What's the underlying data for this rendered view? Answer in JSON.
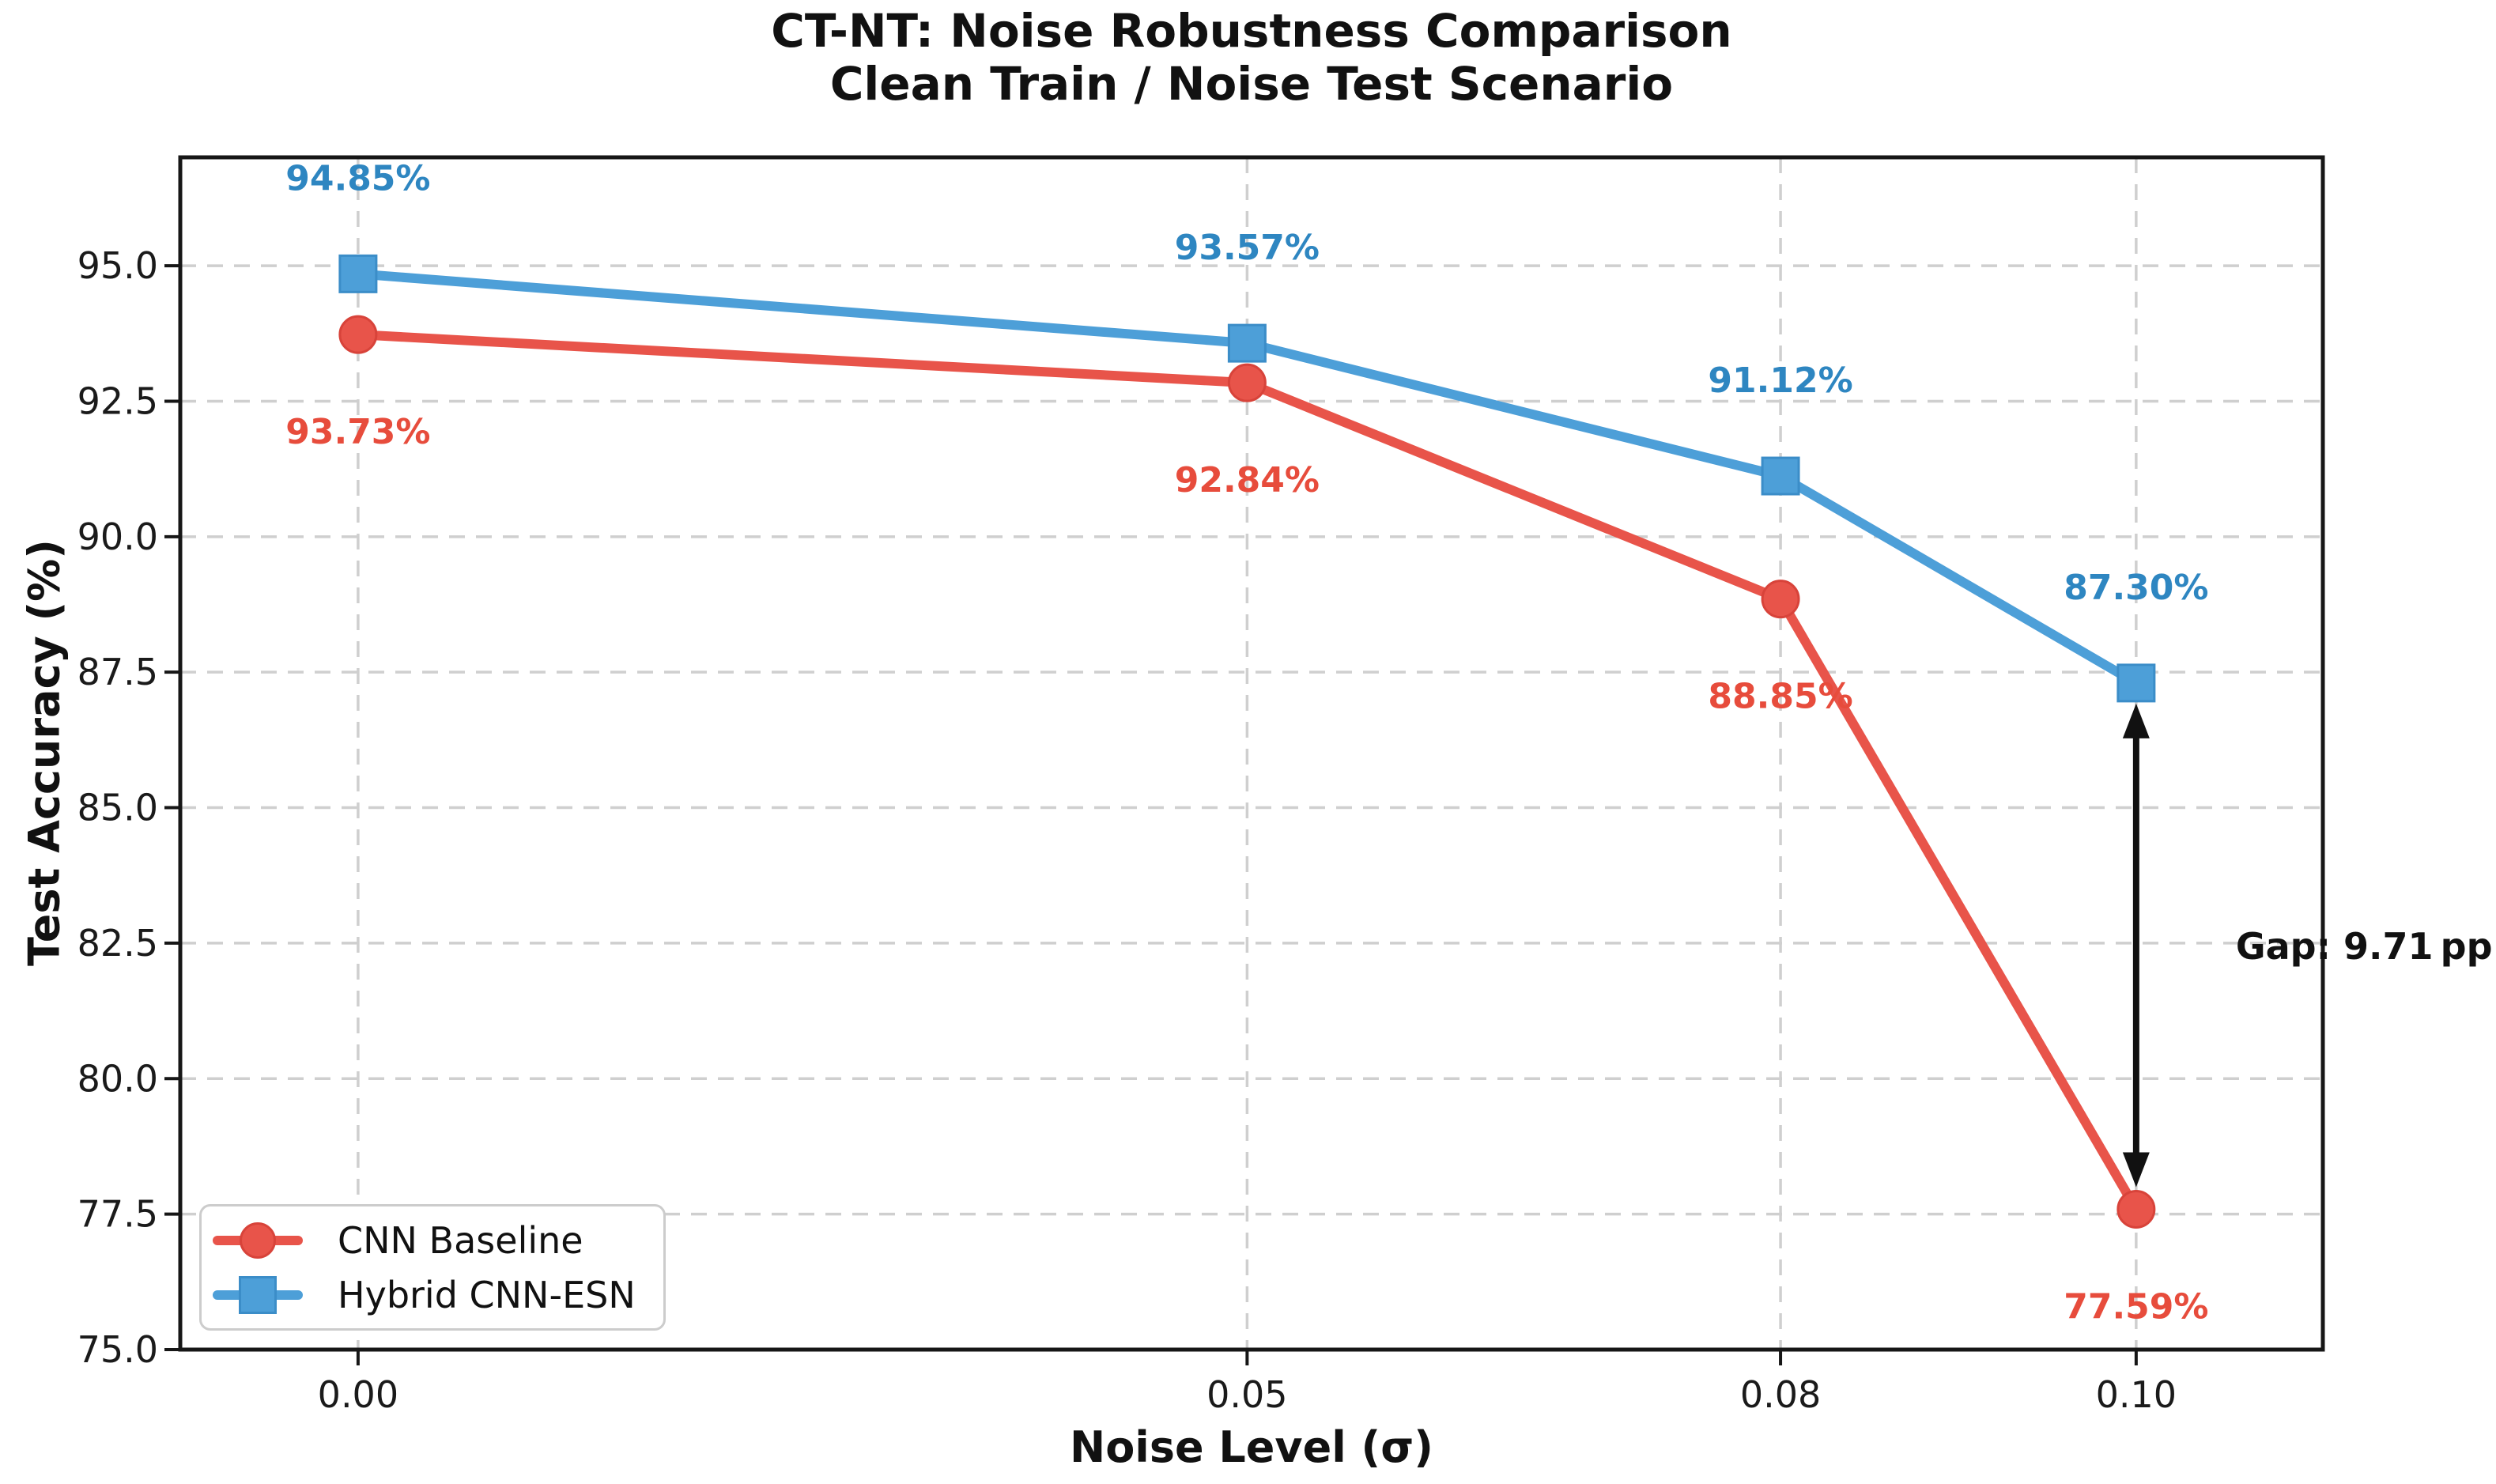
{
  "chart_data": {
    "type": "line",
    "title": "CT-NT: Noise Robustness Comparison",
    "subtitle": "Clean Train / Noise Test Scenario",
    "xlabel": "Noise Level (σ)",
    "ylabel": "Test Accuracy (%)",
    "x": [
      0.0,
      0.05,
      0.08,
      0.1
    ],
    "x_tick_labels": [
      "0.00",
      "0.05",
      "0.08",
      "0.10"
    ],
    "y_ticks": [
      75.0,
      77.5,
      80.0,
      82.5,
      85.0,
      87.5,
      90.0,
      92.5,
      95.0
    ],
    "y_tick_labels": [
      "75.0",
      "77.5",
      "80.0",
      "82.5",
      "85.0",
      "87.5",
      "90.0",
      "92.5",
      "95.0"
    ],
    "xlim": [
      -0.01,
      0.1105
    ],
    "ylim": [
      75,
      97
    ],
    "grid": true,
    "series": [
      {
        "name": "CNN Baseline",
        "marker": "circle",
        "color": "#e8544a",
        "edge_color": "#d8433a",
        "label_color": "#e74c3c",
        "values": [
          93.73,
          92.84,
          88.85,
          77.59
        ],
        "point_labels": [
          "93.73%",
          "92.84%",
          "88.85%",
          "77.59%"
        ],
        "label_position": "below"
      },
      {
        "name": "Hybrid CNN-ESN",
        "marker": "square",
        "color": "#4d9fd8",
        "edge_color": "#3b8dc8",
        "label_color": "#2e86c1",
        "values": [
          94.85,
          93.57,
          91.12,
          87.3
        ],
        "point_labels": [
          "94.85%",
          "93.57%",
          "91.12%",
          "87.30%"
        ],
        "label_position": "above"
      }
    ],
    "legend": {
      "position": "lower-left"
    },
    "annotation": {
      "text": "Gap: 9.71 pp",
      "x": 0.1,
      "from": 87.3,
      "to": 77.59,
      "color": "#111111"
    },
    "colors": {
      "grid": "#cfcfcf",
      "frame": "#161616",
      "tick_text": "#1a1a1a"
    }
  }
}
